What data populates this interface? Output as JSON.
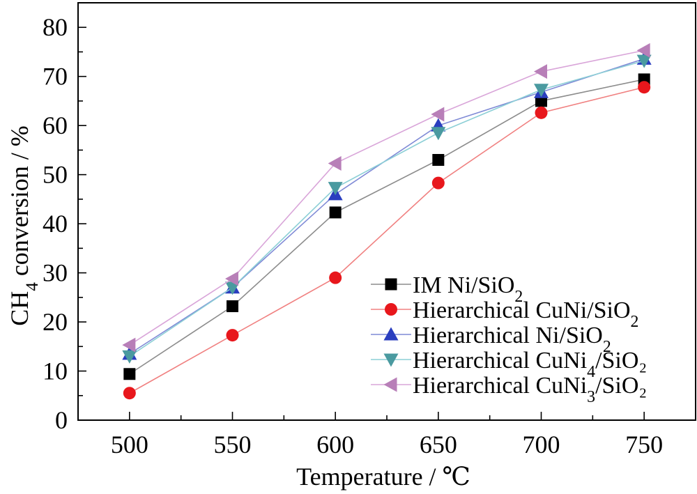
{
  "chart_data": {
    "type": "line",
    "x": [
      500,
      550,
      600,
      650,
      700,
      750
    ],
    "xlim": [
      475,
      775
    ],
    "ylim": [
      0,
      85
    ],
    "xticks": [
      500,
      550,
      600,
      650,
      700,
      750
    ],
    "yticks": [
      0,
      10,
      20,
      30,
      40,
      50,
      60,
      70,
      80
    ],
    "xlabel": "Temperature / ℃",
    "ylabel": {
      "pre": "CH",
      "sub": "4",
      "post": " conversion / %"
    },
    "grid": false,
    "legend_position": "bottom-right",
    "series": [
      {
        "name": {
          "pre": "IM Ni/SiO",
          "sub": "2",
          "post": ""
        },
        "marker": "square",
        "color": "#000000",
        "line_color": "#8c8c8c",
        "values": [
          9.4,
          23.2,
          42.3,
          53.0,
          65.0,
          69.4
        ]
      },
      {
        "name": {
          "pre": "Hierarchical CuNi/SiO",
          "sub": "2",
          "post": ""
        },
        "marker": "circle",
        "color": "#e8171c",
        "line_color": "#f08080",
        "values": [
          5.5,
          17.3,
          29.0,
          48.3,
          62.6,
          67.8
        ]
      },
      {
        "name": {
          "pre": "Hierarchical Ni/SiO",
          "sub": "2",
          "post": ""
        },
        "marker": "triangle-up",
        "color": "#2a3ebf",
        "line_color": "#7f8ad6",
        "values": [
          13.5,
          27.0,
          46.0,
          60.0,
          66.8,
          73.6
        ]
      },
      {
        "name": {
          "pre": "Hierarchical CuNi",
          "sub": "4",
          "post": "/SiO₂"
        },
        "marker": "triangle-down",
        "color": "#4a9aa0",
        "line_color": "#8ccfd6",
        "values": [
          13.0,
          27.0,
          47.3,
          58.5,
          67.3,
          73.2
        ]
      },
      {
        "name": {
          "pre": "Hierarchical CuNi",
          "sub": "3",
          "post": "/SiO₂"
        },
        "marker": "triangle-left",
        "color": "#b87fb8",
        "line_color": "#d9a5d9",
        "values": [
          15.3,
          28.8,
          52.3,
          62.3,
          71.0,
          75.3
        ]
      }
    ]
  }
}
